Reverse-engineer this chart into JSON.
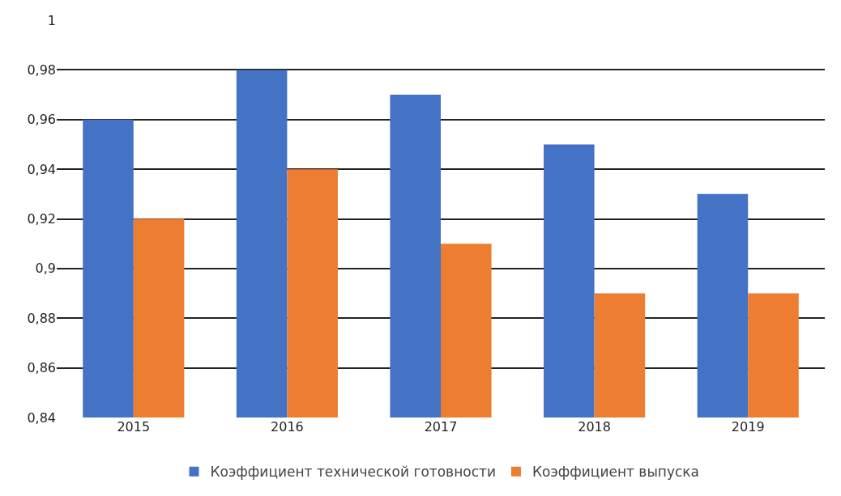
{
  "chart_data": {
    "type": "bar",
    "categories": [
      "2015",
      "2016",
      "2017",
      "2018",
      "2019"
    ],
    "series": [
      {
        "name": "Коэффициент технической готовности",
        "color": "#4472c4",
        "values": [
          0.96,
          0.98,
          0.97,
          0.95,
          0.93
        ]
      },
      {
        "name": "Коэффициент выпуска",
        "color": "#ed7d31",
        "values": [
          0.92,
          0.94,
          0.91,
          0.89,
          0.89
        ]
      }
    ],
    "ylim": [
      0.84,
      1
    ],
    "yticks": [
      {
        "value": 0.84,
        "label": "0,84"
      },
      {
        "value": 0.86,
        "label": "0,86"
      },
      {
        "value": 0.88,
        "label": "0,88"
      },
      {
        "value": 0.9,
        "label": "0,9"
      },
      {
        "value": 0.92,
        "label": "0,92"
      },
      {
        "value": 0.94,
        "label": "0,94"
      },
      {
        "value": 0.96,
        "label": "0,96"
      },
      {
        "value": 0.98,
        "label": "0,98"
      },
      1
    ],
    "grid": "y",
    "legend": "bottom"
  }
}
